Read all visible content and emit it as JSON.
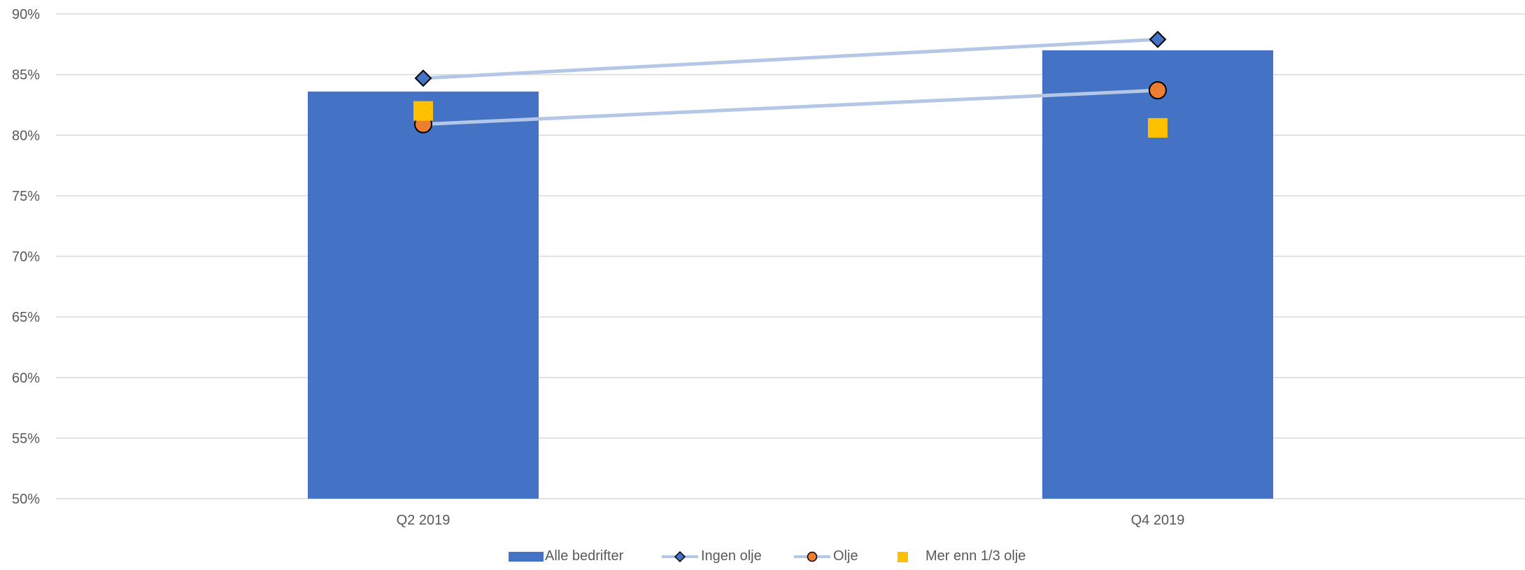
{
  "chart_data": {
    "type": "bar",
    "categories": [
      "Q2 2019",
      "Q4 2019"
    ],
    "ylim": [
      50,
      90
    ],
    "yticks": [
      50,
      55,
      60,
      65,
      70,
      75,
      80,
      85,
      90
    ],
    "ytick_labels": [
      "50%",
      "55%",
      "60%",
      "65%",
      "70%",
      "75%",
      "80%",
      "85%",
      "90%"
    ],
    "grid": true,
    "legend_position": "bottom",
    "series": [
      {
        "name": "Alle bedrifter",
        "kind": "bar",
        "values": [
          83.6,
          87.0
        ],
        "color": "#4472C4"
      },
      {
        "name": "Ingen olje",
        "kind": "line",
        "marker": "diamond",
        "values": [
          84.7,
          87.9
        ],
        "color": "#4472C4",
        "line_color": "#B4C7E7"
      },
      {
        "name": "Olje",
        "kind": "line",
        "marker": "circle",
        "values": [
          80.9,
          83.7
        ],
        "color": "#ED7D31",
        "line_color": "#B4C7E7"
      },
      {
        "name": "Mer enn 1/3 olje",
        "kind": "marker",
        "marker": "square",
        "values": [
          82.0,
          80.6
        ],
        "color": "#FFC000"
      }
    ]
  }
}
